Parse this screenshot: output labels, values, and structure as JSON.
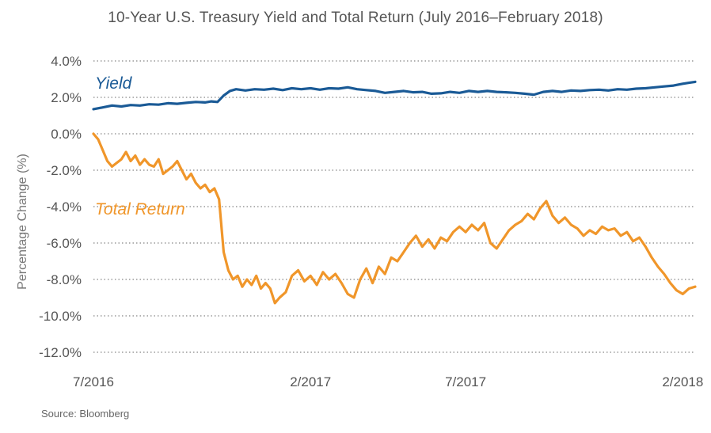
{
  "chart_data": {
    "type": "line",
    "title": "10-Year U.S. Treasury Yield and Total Return (July 2016–February 2018)",
    "ylabel": "Percentage Change (%)",
    "xlabel": "",
    "ylim": [
      -12,
      4
    ],
    "xlim": [
      0,
      19.4
    ],
    "grid": "horizontal dotted",
    "yticks": [
      {
        "value": 4,
        "label": "4.0%"
      },
      {
        "value": 2,
        "label": "2.0%"
      },
      {
        "value": 0,
        "label": "0.0%"
      },
      {
        "value": -2,
        "label": "-2.0%"
      },
      {
        "value": -4,
        "label": "-4.0%"
      },
      {
        "value": -6,
        "label": "-6.0%"
      },
      {
        "value": -8,
        "label": "-8.0%"
      },
      {
        "value": -10,
        "label": "-10.0%"
      },
      {
        "value": -12,
        "label": "-12.0%"
      }
    ],
    "xticks": [
      {
        "value": 0,
        "label": "7/2016"
      },
      {
        "value": 7,
        "label": "2/2017"
      },
      {
        "value": 12,
        "label": "7/2017"
      },
      {
        "value": 19,
        "label": "2/2018"
      }
    ],
    "series": [
      {
        "name": "Yield",
        "color": "#1a5a96",
        "x": [
          0,
          0.3,
          0.6,
          0.9,
          1.2,
          1.5,
          1.8,
          2.1,
          2.4,
          2.7,
          3.0,
          3.3,
          3.6,
          3.8,
          4.0,
          4.2,
          4.4,
          4.6,
          4.9,
          5.2,
          5.5,
          5.8,
          6.1,
          6.4,
          6.7,
          7.0,
          7.3,
          7.6,
          7.9,
          8.2,
          8.5,
          8.8,
          9.1,
          9.4,
          9.7,
          10.0,
          10.3,
          10.6,
          10.9,
          11.2,
          11.5,
          11.8,
          12.1,
          12.4,
          12.7,
          13.0,
          13.3,
          13.6,
          13.9,
          14.2,
          14.5,
          14.8,
          15.1,
          15.4,
          15.7,
          16.0,
          16.3,
          16.6,
          16.9,
          17.2,
          17.5,
          17.8,
          18.1,
          18.4,
          18.7,
          19.0,
          19.2,
          19.4
        ],
        "values": [
          1.35,
          1.45,
          1.55,
          1.5,
          1.58,
          1.55,
          1.62,
          1.6,
          1.68,
          1.65,
          1.7,
          1.75,
          1.72,
          1.78,
          1.75,
          2.1,
          2.35,
          2.45,
          2.38,
          2.45,
          2.42,
          2.48,
          2.4,
          2.5,
          2.45,
          2.5,
          2.42,
          2.5,
          2.48,
          2.55,
          2.45,
          2.4,
          2.35,
          2.25,
          2.3,
          2.35,
          2.28,
          2.3,
          2.2,
          2.22,
          2.3,
          2.25,
          2.35,
          2.3,
          2.35,
          2.3,
          2.28,
          2.25,
          2.2,
          2.15,
          2.3,
          2.35,
          2.3,
          2.38,
          2.35,
          2.4,
          2.42,
          2.38,
          2.45,
          2.42,
          2.48,
          2.5,
          2.55,
          2.6,
          2.65,
          2.75,
          2.8,
          2.85
        ]
      },
      {
        "name": "Total Return",
        "color": "#f0962a",
        "x": [
          0,
          0.15,
          0.3,
          0.45,
          0.6,
          0.75,
          0.9,
          1.05,
          1.2,
          1.35,
          1.5,
          1.65,
          1.8,
          1.95,
          2.1,
          2.25,
          2.4,
          2.55,
          2.7,
          2.85,
          3.0,
          3.15,
          3.3,
          3.45,
          3.6,
          3.75,
          3.9,
          4.05,
          4.2,
          4.35,
          4.5,
          4.65,
          4.8,
          4.95,
          5.1,
          5.25,
          5.4,
          5.55,
          5.7,
          5.85,
          6.0,
          6.2,
          6.4,
          6.6,
          6.8,
          7.0,
          7.2,
          7.4,
          7.6,
          7.8,
          8.0,
          8.2,
          8.4,
          8.6,
          8.8,
          9.0,
          9.2,
          9.4,
          9.6,
          9.8,
          10.0,
          10.2,
          10.4,
          10.6,
          10.8,
          11.0,
          11.2,
          11.4,
          11.6,
          11.8,
          12.0,
          12.2,
          12.4,
          12.6,
          12.8,
          13.0,
          13.2,
          13.4,
          13.6,
          13.8,
          14.0,
          14.2,
          14.4,
          14.6,
          14.8,
          15.0,
          15.2,
          15.4,
          15.6,
          15.8,
          16.0,
          16.2,
          16.4,
          16.6,
          16.8,
          17.0,
          17.2,
          17.4,
          17.6,
          17.8,
          18.0,
          18.2,
          18.4,
          18.6,
          18.8,
          19.0,
          19.2,
          19.4
        ],
        "values": [
          0.0,
          -0.3,
          -0.9,
          -1.5,
          -1.8,
          -1.6,
          -1.4,
          -1.0,
          -1.5,
          -1.2,
          -1.7,
          -1.4,
          -1.7,
          -1.8,
          -1.4,
          -2.2,
          -2.0,
          -1.8,
          -1.5,
          -2.0,
          -2.5,
          -2.2,
          -2.7,
          -3.0,
          -2.8,
          -3.2,
          -3.0,
          -3.6,
          -6.5,
          -7.5,
          -8.0,
          -7.8,
          -8.4,
          -8.0,
          -8.3,
          -7.8,
          -8.5,
          -8.2,
          -8.5,
          -9.3,
          -9.0,
          -8.7,
          -7.8,
          -7.5,
          -8.1,
          -7.8,
          -8.3,
          -7.6,
          -8.0,
          -7.7,
          -8.2,
          -8.8,
          -9.0,
          -8.0,
          -7.4,
          -8.2,
          -7.3,
          -7.7,
          -6.8,
          -7.0,
          -6.5,
          -6.0,
          -5.6,
          -6.2,
          -5.8,
          -6.3,
          -5.7,
          -5.9,
          -5.4,
          -5.1,
          -5.4,
          -5.0,
          -5.3,
          -4.9,
          -6.0,
          -6.3,
          -5.8,
          -5.3,
          -5.0,
          -4.8,
          -4.4,
          -4.7,
          -4.1,
          -3.7,
          -4.5,
          -4.9,
          -4.6,
          -5.0,
          -5.2,
          -5.6,
          -5.3,
          -5.5,
          -5.1,
          -5.3,
          -5.2,
          -5.6,
          -5.4,
          -5.9,
          -5.7,
          -6.2,
          -6.8,
          -7.3,
          -7.7,
          -8.2,
          -8.6,
          -8.8,
          -8.5,
          -8.4
        ]
      }
    ],
    "annotations": [
      {
        "text": "Yield",
        "series": "Yield"
      },
      {
        "text": "Total Return",
        "series": "Total Return"
      }
    ]
  },
  "colors": {
    "yield": "#1a5a96",
    "total_return": "#f0962a",
    "grid": "#9a9a9a",
    "text": "#555555"
  },
  "source_note": "Source: Bloomberg"
}
